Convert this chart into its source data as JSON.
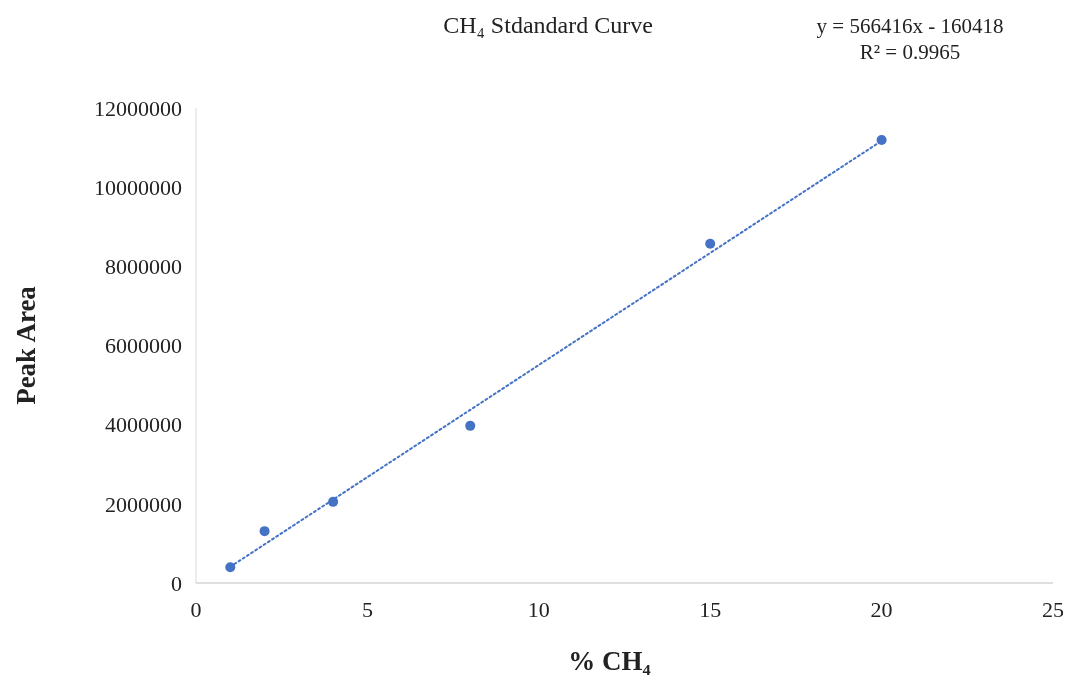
{
  "chart_data": {
    "type": "scatter",
    "title": "CH₄ Stdandard Curve",
    "xlabel": "% CH₄",
    "ylabel": "Peak Area",
    "annotations": [
      "y = 566416x - 160418",
      "R² = 0.9965"
    ],
    "x": [
      1,
      2,
      4,
      8,
      15,
      20
    ],
    "series": [
      {
        "color": "#4472c4",
        "marker": "circle",
        "values": [
          400000,
          1310000,
          2050000,
          3970000,
          8570000,
          11190000
        ]
      },
      {
        "type": "line",
        "color": "#4472c4",
        "marker": "none",
        "line_style": "dotted",
        "x": [
          1,
          20
        ],
        "values": [
          410000,
          11170000
        ]
      }
    ],
    "xlim": [
      0,
      25
    ],
    "xticks": [
      0,
      5,
      10,
      15,
      20,
      25
    ],
    "ylim": [
      0,
      12000000
    ],
    "yticks": [
      0,
      2000000,
      4000000,
      6000000,
      8000000,
      10000000,
      12000000
    ],
    "grid": false
  }
}
